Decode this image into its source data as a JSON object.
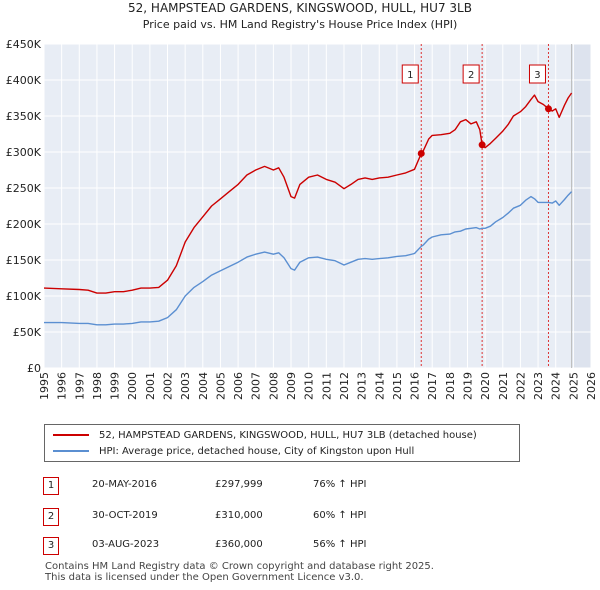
{
  "chart_data": {
    "type": "line",
    "title": "52, HAMPSTEAD GARDENS, KINGSWOOD, HULL, HU7 3LB",
    "subtitle": "Price paid vs. HM Land Registry's House Price Index (HPI)",
    "xlim": [
      1995,
      2026
    ],
    "ylim": [
      0,
      450000
    ],
    "y_ticks": [
      0,
      50000,
      100000,
      150000,
      200000,
      250000,
      300000,
      350000,
      400000,
      450000
    ],
    "y_tick_labels": [
      "£0",
      "£50K",
      "£100K",
      "£150K",
      "£200K",
      "£250K",
      "£300K",
      "£350K",
      "£400K",
      "£450K"
    ],
    "x_ticks": [
      1995,
      1996,
      1997,
      1998,
      1999,
      2000,
      2001,
      2002,
      2003,
      2004,
      2005,
      2006,
      2007,
      2008,
      2009,
      2010,
      2011,
      2012,
      2013,
      2014,
      2015,
      2016,
      2017,
      2018,
      2019,
      2020,
      2021,
      2022,
      2023,
      2024,
      2025,
      2026
    ],
    "x_tick_labels": [
      "1995",
      "1996",
      "1997",
      "1998",
      "1999",
      "2000",
      "2001",
      "2002",
      "2003",
      "2004",
      "2005",
      "2006",
      "2007",
      "2008",
      "2009",
      "2010",
      "2011",
      "2012",
      "2013",
      "2014",
      "2015",
      "2016",
      "2017",
      "2018",
      "2019",
      "2020",
      "2021",
      "2022",
      "2023",
      "2024",
      "2025",
      "2026"
    ],
    "grid": true,
    "forecast_start": 2024.9,
    "series": [
      {
        "name": "52, HAMPSTEAD GARDENS, KINGSWOOD, HULL, HU7 3LB (detached house)",
        "color": "#cc0000",
        "x": [
          1995.0,
          1996.0,
          1997.0,
          1997.5,
          1998.0,
          1998.5,
          1999.0,
          1999.5,
          2000.0,
          2000.5,
          2001.0,
          2001.5,
          2002.0,
          2002.5,
          2003.0,
          2003.5,
          2004.0,
          2004.5,
          2005.0,
          2005.5,
          2006.0,
          2006.5,
          2007.0,
          2007.5,
          2008.0,
          2008.3,
          2008.6,
          2009.0,
          2009.2,
          2009.5,
          2010.0,
          2010.5,
          2011.0,
          2011.5,
          2012.0,
          2012.4,
          2012.8,
          2013.2,
          2013.6,
          2014.0,
          2014.5,
          2015.0,
          2015.5,
          2016.0,
          2016.38,
          2016.5,
          2016.8,
          2017.0,
          2017.5,
          2018.0,
          2018.3,
          2018.6,
          2018.9,
          2019.2,
          2019.5,
          2019.7,
          2019.83,
          2020.0,
          2020.3,
          2020.6,
          2021.0,
          2021.3,
          2021.6,
          2022.0,
          2022.3,
          2022.6,
          2022.8,
          2023.0,
          2023.3,
          2023.59,
          2023.8,
          2024.0,
          2024.2,
          2024.5,
          2024.7,
          2024.9
        ],
        "values": [
          111000,
          110000,
          109000,
          108000,
          104000,
          104000,
          106000,
          106000,
          108000,
          111000,
          111000,
          112000,
          122000,
          142000,
          175000,
          195000,
          210000,
          225000,
          235000,
          245000,
          255000,
          268000,
          275000,
          280000,
          275000,
          278000,
          265000,
          238000,
          236000,
          255000,
          265000,
          268000,
          262000,
          258000,
          249000,
          255000,
          262000,
          264000,
          262000,
          264000,
          265000,
          268000,
          271000,
          276000,
          297999,
          302000,
          318000,
          323000,
          324000,
          326000,
          331000,
          342000,
          345000,
          339000,
          342000,
          331000,
          310000,
          306000,
          312000,
          319000,
          329000,
          338000,
          350000,
          356000,
          363000,
          373000,
          379000,
          370000,
          366000,
          360000,
          357000,
          360000,
          348000,
          365000,
          375000,
          382000
        ]
      },
      {
        "name": "HPI: Average price, detached house, City of Kingston upon Hull",
        "color": "#5b8fd1",
        "x": [
          1995.0,
          1996.0,
          1997.0,
          1997.5,
          1998.0,
          1998.5,
          1999.0,
          1999.5,
          2000.0,
          2000.5,
          2001.0,
          2001.5,
          2002.0,
          2002.5,
          2003.0,
          2003.5,
          2004.0,
          2004.5,
          2005.0,
          2005.5,
          2006.0,
          2006.5,
          2007.0,
          2007.5,
          2008.0,
          2008.3,
          2008.6,
          2009.0,
          2009.2,
          2009.5,
          2010.0,
          2010.5,
          2011.0,
          2011.5,
          2012.0,
          2012.4,
          2012.8,
          2013.2,
          2013.6,
          2014.0,
          2014.5,
          2015.0,
          2015.5,
          2016.0,
          2016.38,
          2016.5,
          2016.8,
          2017.0,
          2017.5,
          2018.0,
          2018.3,
          2018.6,
          2018.9,
          2019.2,
          2019.5,
          2019.7,
          2019.83,
          2020.0,
          2020.3,
          2020.6,
          2021.0,
          2021.3,
          2021.6,
          2022.0,
          2022.3,
          2022.6,
          2022.8,
          2023.0,
          2023.3,
          2023.59,
          2023.8,
          2024.0,
          2024.2,
          2024.5,
          2024.7,
          2024.9
        ],
        "values": [
          63000,
          63000,
          62000,
          62000,
          60000,
          60000,
          61000,
          61000,
          62000,
          64000,
          64000,
          65000,
          70000,
          81000,
          100000,
          112000,
          120000,
          129000,
          135000,
          141000,
          147000,
          154000,
          158000,
          161000,
          158000,
          160000,
          153000,
          138000,
          136000,
          147000,
          153000,
          154000,
          151000,
          149000,
          143000,
          147000,
          151000,
          152000,
          151000,
          152000,
          153000,
          155000,
          156000,
          159000,
          169000,
          171000,
          179000,
          182000,
          185000,
          186000,
          189000,
          190000,
          193000,
          194000,
          195000,
          193000,
          194000,
          194000,
          197000,
          203000,
          209000,
          215000,
          222000,
          226000,
          233000,
          238000,
          235000,
          230000,
          230000,
          230000,
          229000,
          232000,
          226000,
          234000,
          240000,
          245000
        ]
      }
    ],
    "sale_markers": [
      {
        "label": "1",
        "x": 2016.38,
        "value": 297999
      },
      {
        "label": "2",
        "x": 2019.83,
        "value": 310000
      },
      {
        "label": "3",
        "x": 2023.59,
        "value": 360000
      }
    ]
  },
  "legend": {
    "entries": [
      {
        "label": "52, HAMPSTEAD GARDENS, KINGSWOOD, HULL, HU7 3LB (detached house)",
        "color": "#cc0000"
      },
      {
        "label": "HPI: Average price, detached house, City of Kingston upon Hull",
        "color": "#5b8fd1"
      }
    ]
  },
  "sales": [
    {
      "num": "1",
      "date": "20-MAY-2016",
      "price": "£297,999",
      "hpi": "76% ↑ HPI"
    },
    {
      "num": "2",
      "date": "30-OCT-2019",
      "price": "£310,000",
      "hpi": "60% ↑ HPI"
    },
    {
      "num": "3",
      "date": "03-AUG-2023",
      "price": "£360,000",
      "hpi": "56% ↑ HPI"
    }
  ],
  "footer": {
    "line1": "Contains HM Land Registry data © Crown copyright and database right 2025.",
    "line2": "This data is licensed under the Open Government Licence v3.0."
  }
}
